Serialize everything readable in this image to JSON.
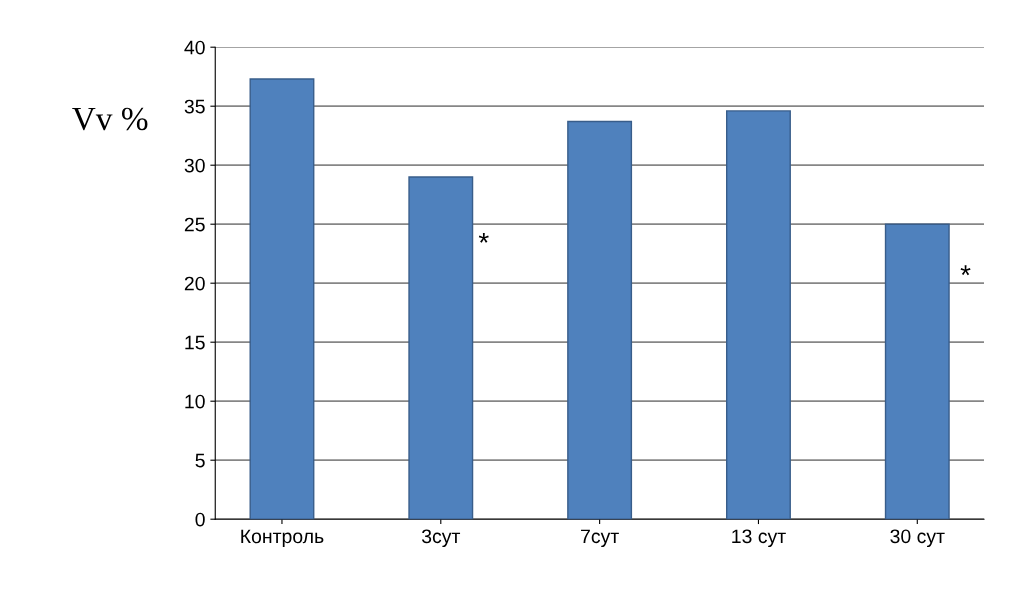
{
  "chart_data": {
    "type": "bar",
    "ylabel": "Vv %",
    "categories": [
      "Контроль",
      "3сут",
      "7сут",
      "13 сут",
      "30 сут"
    ],
    "values": [
      37.3,
      29.0,
      33.7,
      34.6,
      25.0
    ],
    "color": "#4f81bd",
    "ylim": [
      0,
      40
    ],
    "yticks": [
      0,
      5,
      10,
      15,
      20,
      25,
      30,
      35,
      40
    ],
    "grid": "y",
    "annotations": [
      "*",
      "*"
    ]
  }
}
